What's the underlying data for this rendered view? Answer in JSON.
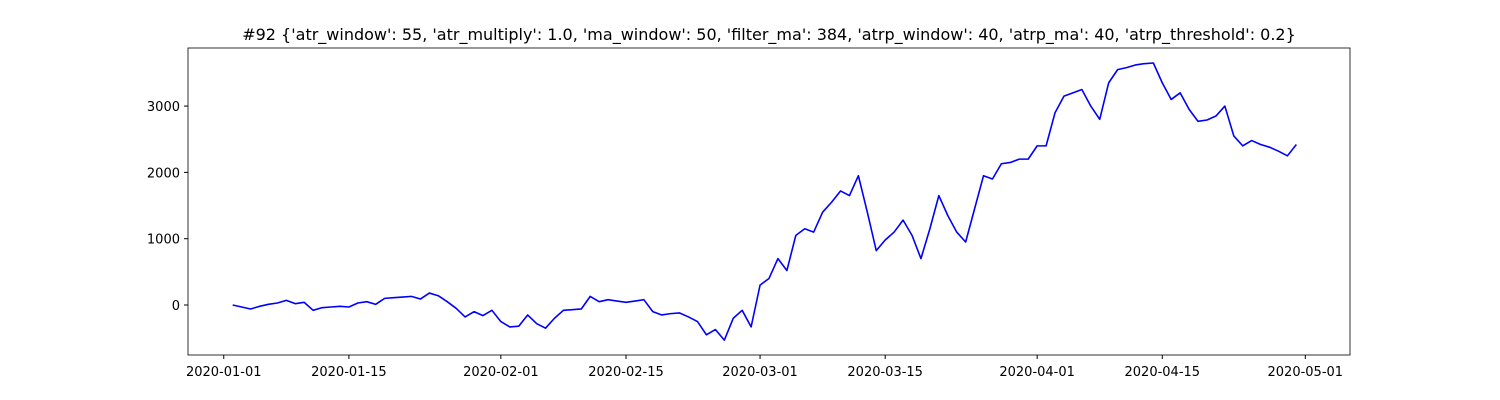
{
  "chart_data": {
    "type": "line",
    "title": "#92 {'atr_window': 55, 'atr_multiply': 1.0, 'ma_window': 50, 'filter_ma': 384, 'atrp_window': 40, 'atrp_ma': 40, 'atrp_threshold': 0.2}",
    "x": [
      "2020-01-02",
      "2020-01-03",
      "2020-01-04",
      "2020-01-05",
      "2020-01-06",
      "2020-01-07",
      "2020-01-08",
      "2020-01-09",
      "2020-01-10",
      "2020-01-11",
      "2020-01-12",
      "2020-01-13",
      "2020-01-14",
      "2020-01-15",
      "2020-01-16",
      "2020-01-17",
      "2020-01-18",
      "2020-01-19",
      "2020-01-20",
      "2020-01-21",
      "2020-01-22",
      "2020-01-23",
      "2020-01-24",
      "2020-01-25",
      "2020-01-26",
      "2020-01-27",
      "2020-01-28",
      "2020-01-29",
      "2020-01-30",
      "2020-01-31",
      "2020-02-01",
      "2020-02-02",
      "2020-02-03",
      "2020-02-04",
      "2020-02-05",
      "2020-02-06",
      "2020-02-07",
      "2020-02-08",
      "2020-02-09",
      "2020-02-10",
      "2020-02-11",
      "2020-02-12",
      "2020-02-13",
      "2020-02-14",
      "2020-02-15",
      "2020-02-16",
      "2020-02-17",
      "2020-02-18",
      "2020-02-19",
      "2020-02-20",
      "2020-02-21",
      "2020-02-22",
      "2020-02-23",
      "2020-02-24",
      "2020-02-25",
      "2020-02-26",
      "2020-02-27",
      "2020-02-28",
      "2020-02-29",
      "2020-03-01",
      "2020-03-02",
      "2020-03-03",
      "2020-03-04",
      "2020-03-05",
      "2020-03-06",
      "2020-03-07",
      "2020-03-08",
      "2020-03-09",
      "2020-03-10",
      "2020-03-11",
      "2020-03-12",
      "2020-03-13",
      "2020-03-14",
      "2020-03-15",
      "2020-03-16",
      "2020-03-17",
      "2020-03-18",
      "2020-03-19",
      "2020-03-20",
      "2020-03-21",
      "2020-03-22",
      "2020-03-23",
      "2020-03-24",
      "2020-03-25",
      "2020-03-26",
      "2020-03-27",
      "2020-03-28",
      "2020-03-29",
      "2020-03-30",
      "2020-03-31",
      "2020-04-01",
      "2020-04-02",
      "2020-04-03",
      "2020-04-04",
      "2020-04-05",
      "2020-04-06",
      "2020-04-07",
      "2020-04-08",
      "2020-04-09",
      "2020-04-10",
      "2020-04-11",
      "2020-04-12",
      "2020-04-13",
      "2020-04-14",
      "2020-04-15",
      "2020-04-16",
      "2020-04-17",
      "2020-04-18",
      "2020-04-19",
      "2020-04-20",
      "2020-04-21",
      "2020-04-22",
      "2020-04-23",
      "2020-04-24",
      "2020-04-25",
      "2020-04-26",
      "2020-04-27",
      "2020-04-28",
      "2020-04-29",
      "2020-04-30"
    ],
    "series": [
      {
        "color": "#0000ff",
        "values": [
          0,
          -30,
          -60,
          -20,
          10,
          30,
          70,
          20,
          40,
          -80,
          -40,
          -30,
          -20,
          -30,
          30,
          50,
          10,
          100,
          110,
          120,
          130,
          90,
          180,
          140,
          50,
          -50,
          -180,
          -100,
          -160,
          -80,
          -250,
          -330,
          -320,
          -150,
          -280,
          -350,
          -200,
          -80,
          -70,
          -60,
          130,
          50,
          80,
          60,
          40,
          60,
          80,
          -100,
          -150,
          -130,
          -120,
          -180,
          -250,
          -450,
          -370,
          -530,
          -200,
          -80,
          -330,
          300,
          400,
          700,
          520,
          1050,
          1150,
          1100,
          1400,
          1550,
          1720,
          1650,
          1950,
          1400,
          820,
          980,
          1100,
          1280,
          1050,
          700,
          1150,
          1650,
          1350,
          1100,
          950,
          1450,
          1950,
          1900,
          2130,
          2150,
          2200,
          2200,
          2400,
          2400,
          2900,
          3150,
          3200,
          3250,
          3000,
          2800,
          3350,
          3550,
          3580,
          3620,
          3640,
          3650,
          3350,
          3100,
          3200,
          2950,
          2770,
          2790,
          2850,
          3000,
          2550,
          2400,
          2480,
          2420,
          2380,
          2320,
          2250,
          2420
        ]
      }
    ],
    "xlim": [
      "2019-12-28",
      "2020-05-06"
    ],
    "xticks": [
      "2020-01-01",
      "2020-01-15",
      "2020-02-01",
      "2020-02-15",
      "2020-03-01",
      "2020-03-15",
      "2020-04-01",
      "2020-04-15",
      "2020-05-01"
    ],
    "ylim": [
      -754,
      3876
    ],
    "yticks": [
      0,
      1000,
      2000,
      3000
    ]
  }
}
